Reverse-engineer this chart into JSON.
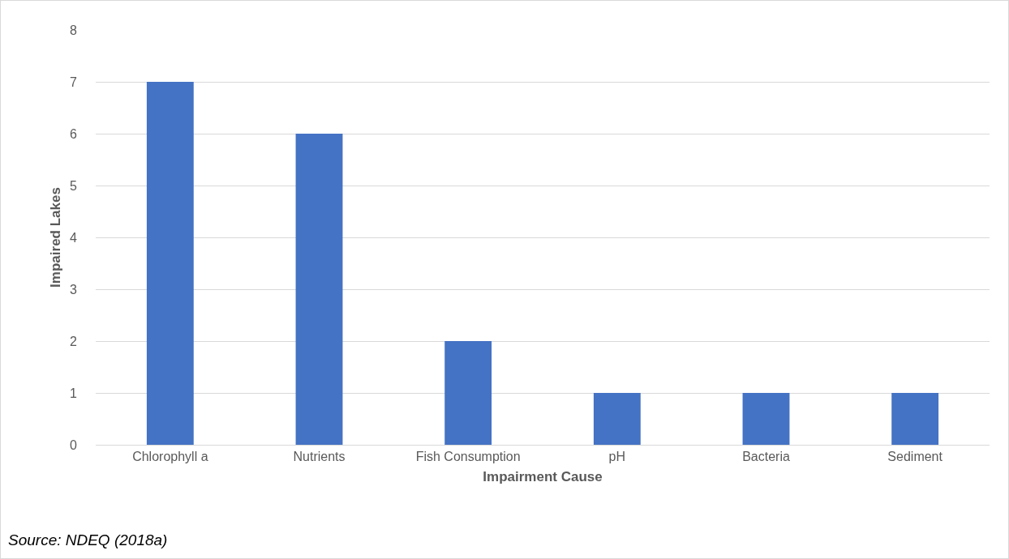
{
  "chart_data": {
    "type": "bar",
    "xlabel": "Impairment Cause",
    "ylabel": "Impaired Lakes",
    "categories": [
      "Chlorophyll a",
      "Nutrients",
      "Fish Consumption",
      "pH",
      "Bacteria",
      "Sediment"
    ],
    "values": [
      7,
      6,
      2,
      1,
      1,
      1
    ],
    "color": "#4472c4",
    "ylim": [
      0,
      8
    ],
    "yticks": [
      0,
      1,
      2,
      3,
      4,
      5,
      6,
      7,
      8
    ],
    "grid": "y",
    "legend": false,
    "annotations": [
      "Source: NDEQ (2018a)"
    ]
  }
}
